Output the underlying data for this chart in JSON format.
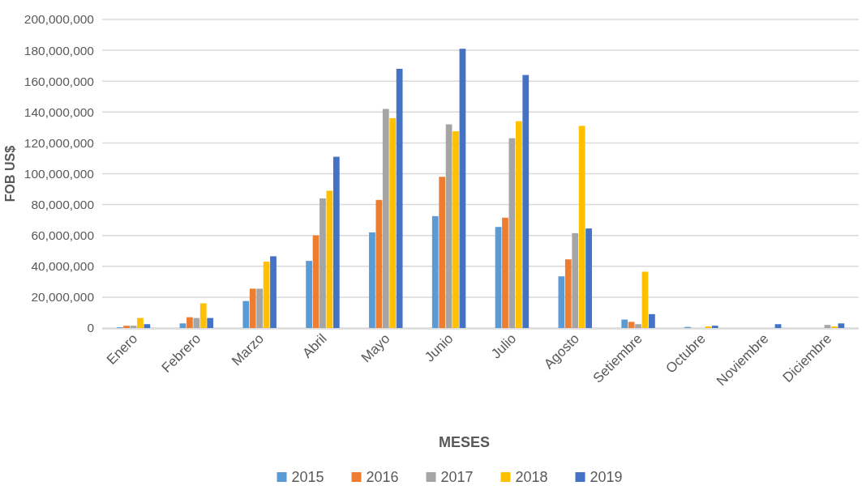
{
  "chart_data": {
    "type": "bar",
    "xlabel": "MESES",
    "ylabel": "FOB US$",
    "categories": [
      "Enero",
      "Febrero",
      "Marzo",
      "Abril",
      "Mayo",
      "Junio",
      "Julio",
      "Agosto",
      "Setiembre",
      "Octubre",
      "Noviembre",
      "Diciembre"
    ],
    "series": [
      {
        "name": "2015",
        "color": "#5b9bd5",
        "values": [
          500000,
          3000000,
          17500000,
          43500000,
          62000000,
          72500000,
          65500000,
          33500000,
          5500000,
          700000,
          0,
          0
        ]
      },
      {
        "name": "2016",
        "color": "#ed7d31",
        "values": [
          1500000,
          7000000,
          25500000,
          60000000,
          83000000,
          98000000,
          71500000,
          44500000,
          4000000,
          0,
          0,
          0
        ]
      },
      {
        "name": "2017",
        "color": "#a5a5a5",
        "values": [
          1500000,
          6500000,
          25500000,
          84000000,
          142000000,
          132000000,
          123000000,
          61500000,
          2500000,
          0,
          0,
          2000000
        ]
      },
      {
        "name": "2018",
        "color": "#ffc000",
        "values": [
          6500000,
          16000000,
          43000000,
          89000000,
          136000000,
          127500000,
          134000000,
          131000000,
          36500000,
          1000000,
          0,
          1000000
        ]
      },
      {
        "name": "2019",
        "color": "#4472c4",
        "values": [
          2500000,
          6500000,
          46500000,
          111000000,
          168000000,
          181000000,
          164000000,
          64500000,
          9000000,
          1500000,
          2500000,
          3000000
        ]
      }
    ],
    "ylim": [
      0,
      200000000
    ],
    "yticks": [
      {
        "value": 0,
        "label": "0"
      },
      {
        "value": 20000000,
        "label": "20,000,000"
      },
      {
        "value": 40000000,
        "label": "40,000,000"
      },
      {
        "value": 60000000,
        "label": "60,000,000"
      },
      {
        "value": 80000000,
        "label": "80,000,000"
      },
      {
        "value": 100000000,
        "label": "100,000,000"
      },
      {
        "value": 120000000,
        "label": "120,000,000"
      },
      {
        "value": 140000000,
        "label": "140,000,000"
      },
      {
        "value": 160000000,
        "label": "160,000,000"
      },
      {
        "value": 180000000,
        "label": "180,000,000"
      },
      {
        "value": 200000000,
        "label": "200,000,000"
      }
    ],
    "grid": "y",
    "legend": "bottom"
  }
}
